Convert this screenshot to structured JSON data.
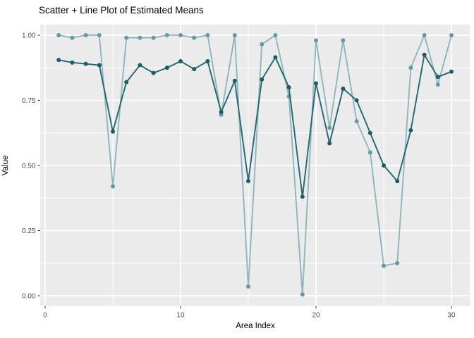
{
  "window": {
    "kind": "r-ggplot-graphics-pane"
  },
  "chart_data": {
    "type": "line",
    "title": "Scatter + Line Plot of Estimated Means",
    "xlabel": "Area Index",
    "ylabel": "Value",
    "legend": "none",
    "grid": true,
    "panel_bg": "#EBEBEB",
    "grid_color": "#FFFFFF",
    "axis_text_color": "#4D4D4D",
    "tick_mark_color": "#333333",
    "title_color": "#000000",
    "xlim": [
      -0.365,
      31.38
    ],
    "ylim": [
      -0.0392,
      1.0405
    ],
    "x_ticks": [
      {
        "value": 0,
        "label": "0"
      },
      {
        "value": 10,
        "label": "10"
      },
      {
        "value": 20,
        "label": "20"
      },
      {
        "value": 30,
        "label": "30"
      }
    ],
    "y_ticks": [
      {
        "value": 1.0,
        "label": "1.00"
      },
      {
        "value": 0.75,
        "label": "0.75"
      },
      {
        "value": 0.5,
        "label": "0.50"
      },
      {
        "value": 0.25,
        "label": "0.25"
      },
      {
        "value": 0.0,
        "label": "0.00"
      }
    ],
    "x_grid_major": [
      0,
      10,
      20,
      30
    ],
    "x_grid_minor": [
      5,
      15,
      25
    ],
    "y_grid_major": [
      0,
      0.25,
      0.5,
      0.75,
      1.0
    ],
    "y_grid_minor": [
      0.125,
      0.375,
      0.625,
      0.875
    ],
    "x": [
      1,
      2,
      3,
      4,
      5,
      6,
      7,
      8,
      9,
      10,
      11,
      12,
      13,
      14,
      15,
      16,
      17,
      18,
      19,
      20,
      21,
      22,
      23,
      24,
      25,
      26,
      27,
      28,
      29,
      30
    ],
    "series": [
      {
        "name": "light-teal",
        "line_color": "#8FB6BE",
        "point_color": "#629AA6",
        "values": [
          1.0,
          0.99,
          1.0,
          1.0,
          0.42,
          0.99,
          0.99,
          0.99,
          1.0,
          1.0,
          0.99,
          1.0,
          0.695,
          1.0,
          0.035,
          0.965,
          1.0,
          0.765,
          0.005,
          0.98,
          0.645,
          0.98,
          0.67,
          0.55,
          0.115,
          0.125,
          0.875,
          1.0,
          0.81,
          1.0
        ]
      },
      {
        "name": "dark-teal",
        "line_color": "#236770",
        "point_color": "#1B5C67",
        "values": [
          0.905,
          0.895,
          0.89,
          0.885,
          0.63,
          0.82,
          0.885,
          0.855,
          0.875,
          0.9,
          0.87,
          0.9,
          0.705,
          0.825,
          0.44,
          0.83,
          0.915,
          0.8,
          0.38,
          0.815,
          0.585,
          0.795,
          0.75,
          0.625,
          0.5,
          0.44,
          0.635,
          0.925,
          0.84,
          0.86
        ]
      }
    ]
  },
  "labels": {
    "title": "Scatter + Line Plot of Estimated Means",
    "xlabel": "Area Index",
    "ylabel": "Value"
  }
}
